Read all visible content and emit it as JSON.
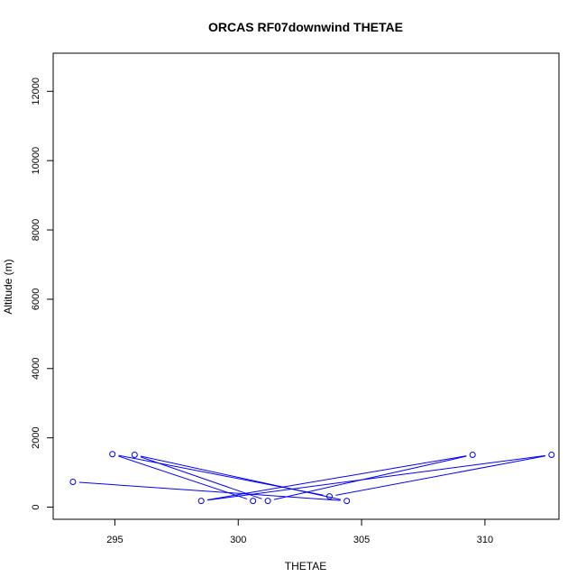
{
  "chart_data": {
    "type": "line",
    "title": "ORCAS RF07downwind THETAE",
    "xlabel": "THETAE",
    "ylabel": "Altitude (m)",
    "xlim": [
      292.5,
      313.0
    ],
    "ylim": [
      -350,
      13100
    ],
    "x_ticks": [
      295,
      300,
      305,
      310
    ],
    "x_tick_labels": [
      "295",
      "300",
      "305",
      "310"
    ],
    "y_ticks": [
      0,
      2000,
      4000,
      6000,
      8000,
      10000,
      12000
    ],
    "y_tick_labels": [
      "0",
      "2000",
      "4000",
      "6000",
      "8000",
      "10000",
      "12000"
    ],
    "series": [
      {
        "color": "#0000ff",
        "points": [
          {
            "x": 293.3,
            "y": 730
          },
          {
            "x": 304.4,
            "y": 180
          },
          {
            "x": 295.8,
            "y": 1510
          },
          {
            "x": 301.2,
            "y": 180
          },
          {
            "x": 309.5,
            "y": 1510
          },
          {
            "x": 298.5,
            "y": 180
          },
          {
            "x": 312.7,
            "y": 1510
          },
          {
            "x": 303.7,
            "y": 310
          },
          {
            "x": 294.9,
            "y": 1530
          },
          {
            "x": 300.6,
            "y": 180
          }
        ]
      }
    ]
  }
}
